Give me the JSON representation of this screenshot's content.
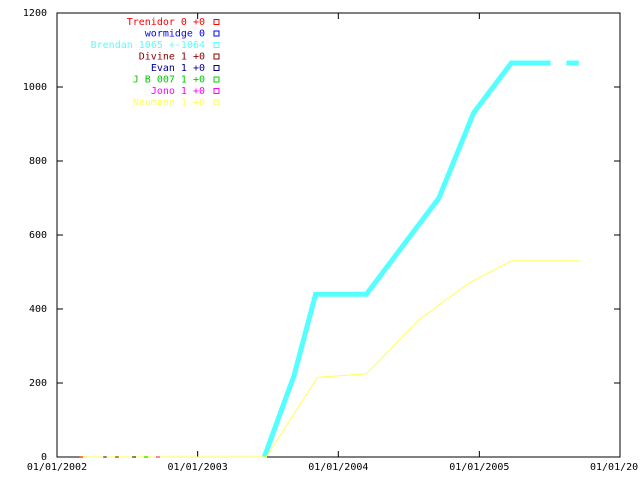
{
  "chart_data": {
    "type": "line",
    "xlim": [
      "2002-01-01",
      "2006-01-01"
    ],
    "xticks": [
      {
        "value": "2002-01-01",
        "label": "01/01/2002"
      },
      {
        "value": "2003-01-01",
        "label": "01/01/2003"
      },
      {
        "value": "2004-01-01",
        "label": "01/01/2004"
      },
      {
        "value": "2005-01-01",
        "label": "01/01/2005"
      },
      {
        "value": "2006-01-01",
        "label": "01/01/20"
      }
    ],
    "ylim": [
      0,
      1200
    ],
    "yticks": [
      0,
      200,
      400,
      600,
      800,
      1000,
      1200
    ],
    "legend": "top-left",
    "series": [
      {
        "name": "Trenidor 0 +0",
        "color": "#ff0000",
        "width": 2,
        "x": [
          "2002-03-01",
          "2002-03-10"
        ],
        "values": [
          0,
          0
        ]
      },
      {
        "name": "wormidge 0",
        "color": "#0000ff",
        "width": 2,
        "x": [
          "2002-05-01",
          "2002-05-10"
        ],
        "values": [
          0,
          0
        ]
      },
      {
        "name": "Brendan 1065 +-1064",
        "color": "#55ffff",
        "width": 5,
        "x": [
          "2003-06-23",
          "2003-09-08",
          "2003-11-03",
          "2004-03-14",
          "2004-09-18",
          "2004-12-17",
          "2005-03-25",
          "2005-07-05",
          null,
          "2005-08-15",
          "2005-09-16"
        ],
        "values": [
          0,
          220,
          440,
          440,
          700,
          930,
          1065,
          1065,
          null,
          1065,
          1065
        ]
      },
      {
        "name": "Divine 1 +0",
        "color": "#8b0000",
        "width": 2,
        "x": [
          "2002-06-01",
          "2002-06-10"
        ],
        "values": [
          0,
          0
        ]
      },
      {
        "name": "Evan 1 +0",
        "color": "#00008b",
        "width": 2,
        "x": [
          "2002-07-15",
          "2002-07-25"
        ],
        "values": [
          0,
          0
        ]
      },
      {
        "name": "J B 007 1 +0",
        "color": "#00cc00",
        "width": 2,
        "x": [
          "2002-08-15",
          "2002-08-25"
        ],
        "values": [
          0,
          0
        ]
      },
      {
        "name": "Jono 1 +0",
        "color": "#ff00ff",
        "width": 2,
        "x": [
          "2002-09-15",
          "2002-09-25"
        ],
        "values": [
          0,
          0
        ]
      },
      {
        "name": "Neumann 1 +0",
        "color": "#ffff55",
        "width": 1,
        "x": [
          "2002-03-01",
          "2003-06-28",
          "2003-11-08",
          "2004-03-14",
          "2004-07-27",
          "2004-12-05",
          "2005-03-25",
          "2005-09-20"
        ],
        "values": [
          0,
          0,
          215,
          225,
          370,
          470,
          530,
          530
        ]
      }
    ]
  }
}
